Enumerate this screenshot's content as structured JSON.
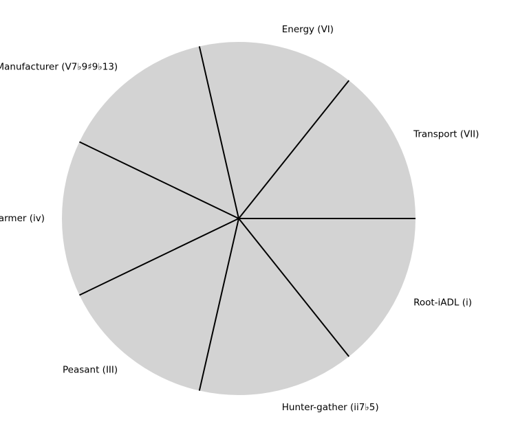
{
  "chart_data": {
    "type": "pie",
    "title": "",
    "categories": [
      "Transport (VII)",
      "Energy (VI)",
      "Manufacturer (V7♭9♯9♭13)",
      "Farmer (iv)",
      "Peasant (III)",
      "Hunter-gather (ii7♭5)",
      "Root-iADL (i)"
    ],
    "values": [
      1,
      1,
      1,
      1,
      1,
      1,
      1
    ],
    "start_angle_deg": 0,
    "direction": "counterclockwise",
    "slice_color": "#d3d3d3",
    "edge_color": "#000000",
    "legend": "none"
  }
}
